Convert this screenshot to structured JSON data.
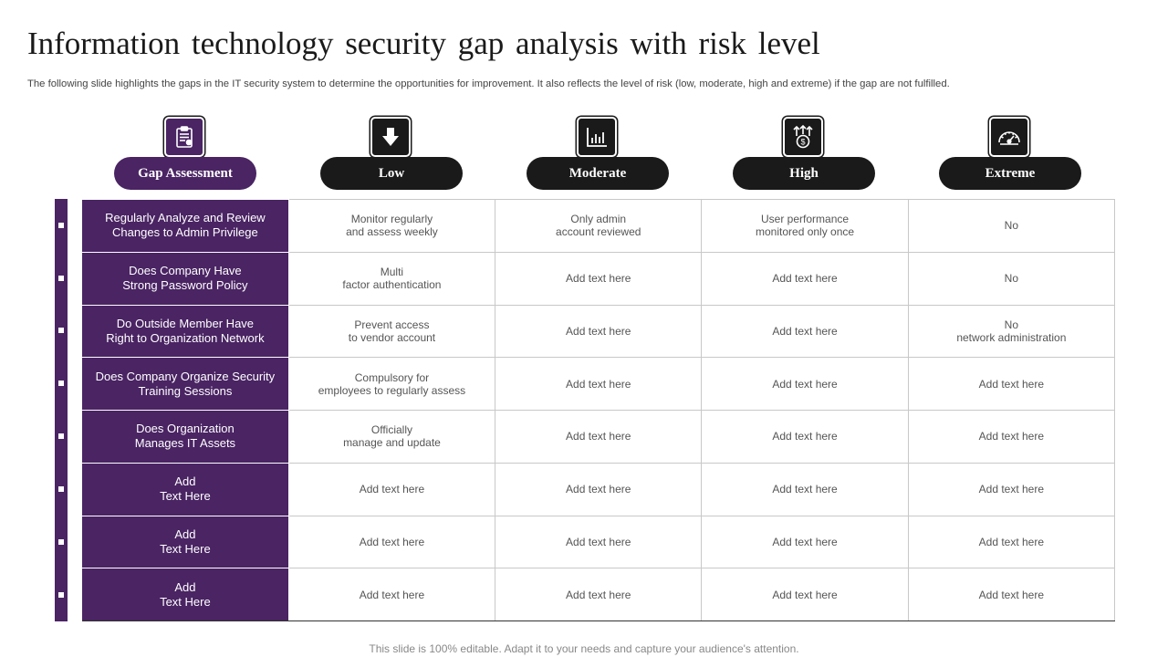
{
  "title": "Information technology security gap analysis with risk level",
  "subtitle": "The following slide highlights the gaps in the IT security system to determine the opportunities for improvement. It also reflects the level of risk (low, moderate, high and extreme) if the gap are not fulfilled.",
  "colors": {
    "accent_purple": "#4a2463",
    "pill_dark": "#1a1a1a",
    "border_gray": "#c8c8c8"
  },
  "headers": [
    {
      "label": "Gap Assessment",
      "icon": "clipboard-checklist-icon"
    },
    {
      "label": "Low",
      "icon": "arrow-down-icon"
    },
    {
      "label": "Moderate",
      "icon": "bar-chart-icon"
    },
    {
      "label": "High",
      "icon": "money-growth-icon"
    },
    {
      "label": "Extreme",
      "icon": "speedometer-icon"
    }
  ],
  "rows": [
    [
      "Regularly Analyze and Review\nChanges to Admin Privilege",
      "Monitor regularly\nand assess weekly",
      "Only admin\naccount reviewed",
      "User performance\nmonitored only once",
      "No"
    ],
    [
      "Does Company Have\nStrong Password Policy",
      "Multi\nfactor authentication",
      "Add text here",
      "Add text here",
      "No"
    ],
    [
      "Do Outside Member Have\nRight to Organization Network",
      "Prevent access\nto vendor account",
      "Add text here",
      "Add text here",
      "No\nnetwork administration"
    ],
    [
      "Does Company Organize Security\nTraining Sessions",
      "Compulsory for\nemployees to regularly assess",
      "Add text here",
      "Add text here",
      "Add text here"
    ],
    [
      "Does Organization\nManages IT Assets",
      "Officially\nmanage and update",
      "Add text here",
      "Add text here",
      "Add text here"
    ],
    [
      "Add\nText Here",
      "Add text here",
      "Add text here",
      "Add text here",
      "Add text here"
    ],
    [
      "Add\nText Here",
      "Add text here",
      "Add text here",
      "Add text here",
      "Add text here"
    ],
    [
      "Add\nText Here",
      "Add text here",
      "Add text here",
      "Add text here",
      "Add text here"
    ]
  ],
  "footer": "This slide is 100% editable. Adapt it to your needs and capture your audience's attention."
}
